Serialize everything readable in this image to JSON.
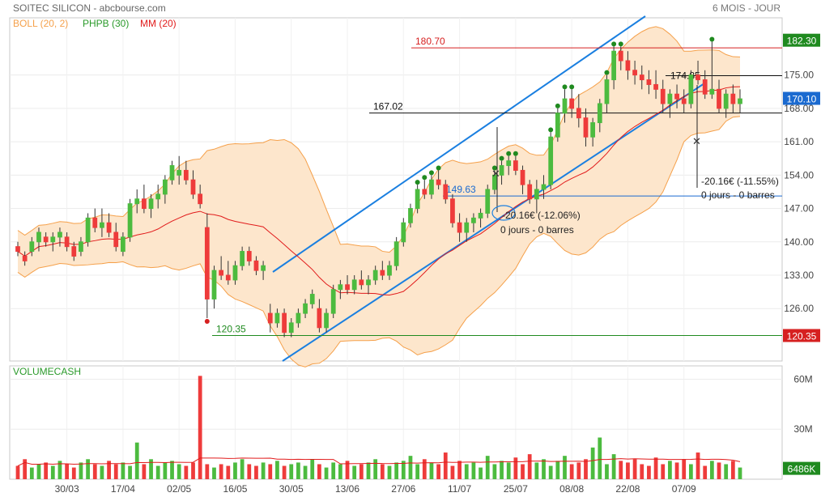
{
  "header": {
    "title": "SOITEC SILICON - abcbourse.com",
    "period": "6 MOIS - JOUR",
    "legend": [
      {
        "label": "BOLL (20, 2)",
        "color": "#f5a04a"
      },
      {
        "label": "PHPB (30)",
        "color": "#2a9a2a"
      },
      {
        "label": "MM (20)",
        "color": "#e11b1b"
      }
    ]
  },
  "volume_panel": {
    "title": "VOLUMECASH"
  },
  "colors": {
    "up": "#4cbb3f",
    "down": "#ee3b3b",
    "boll": "#f5a04a",
    "boll_fill": "#fde6cc",
    "mm": "#e11b1b",
    "channel": "#1a7fe0",
    "volume_ma": "#e11b1b"
  },
  "annotations": {
    "level_high": "180.70",
    "level_mid": "167.02",
    "level_low": "120.35",
    "level_blue": "149.63",
    "level_174": "174.85",
    "tag_high": "182.30",
    "tag_last": "170.10",
    "tag_low": "120.35",
    "tag_vol": "6486K",
    "measure1_line1": "-20.16€ (-11.55%)",
    "measure1_line2": "0 jours - 0 barres",
    "measure2_line1": "-20.16€ (-12.06%)",
    "measure2_line2": "0 jours - 0 barres"
  },
  "chart_data": {
    "type": "candlestick",
    "title": "SOITEC SILICON",
    "x_tick_labels": [
      "30/03",
      "17/04",
      "02/05",
      "16/05",
      "30/05",
      "13/06",
      "27/06",
      "11/07",
      "25/07",
      "08/08",
      "22/08",
      "07/09"
    ],
    "y_ticks": [
      "182.30",
      "175.00",
      "170.10",
      "168.00",
      "161.00",
      "154.00",
      "147.00",
      "140.00",
      "133.00",
      "126.00",
      "120.35"
    ],
    "ylim": [
      115,
      187
    ],
    "volume_ticks": [
      "60M",
      "30M",
      "6486K"
    ],
    "volume_ylim": [
      0,
      68
    ],
    "volume_unit": "M",
    "candles": [
      [
        139,
        140,
        137,
        138
      ],
      [
        137,
        138,
        135,
        136
      ],
      [
        138,
        141,
        137,
        140
      ],
      [
        140,
        143,
        138,
        142
      ],
      [
        141,
        142,
        139,
        140
      ],
      [
        140,
        142,
        138,
        141
      ],
      [
        141,
        143,
        139,
        142
      ],
      [
        141,
        142,
        138,
        139
      ],
      [
        139,
        140,
        136,
        137
      ],
      [
        138,
        141,
        137,
        140
      ],
      [
        140,
        146,
        139,
        145
      ],
      [
        145,
        147,
        142,
        143
      ],
      [
        143,
        147,
        141,
        144
      ],
      [
        144,
        146,
        141,
        142
      ],
      [
        142,
        144,
        138,
        139
      ],
      [
        138,
        142,
        137,
        141
      ],
      [
        141,
        149,
        140,
        148
      ],
      [
        148,
        151,
        146,
        149
      ],
      [
        149,
        152,
        146,
        147
      ],
      [
        147,
        150,
        145,
        149
      ],
      [
        149,
        152,
        147,
        150
      ],
      [
        150,
        154,
        148,
        153
      ],
      [
        153,
        157,
        152,
        156
      ],
      [
        154,
        158,
        152,
        155
      ],
      [
        155,
        157,
        152,
        153
      ],
      [
        153,
        155,
        149,
        150
      ],
      [
        150,
        152,
        147,
        148
      ],
      [
        143,
        146,
        124,
        128
      ],
      [
        128,
        135,
        126,
        134
      ],
      [
        134,
        137,
        132,
        133
      ],
      [
        133,
        136,
        131,
        132
      ],
      [
        132,
        136,
        131,
        135
      ],
      [
        135,
        139,
        134,
        138
      ],
      [
        138,
        139,
        135,
        136
      ],
      [
        136,
        137,
        133,
        134
      ],
      [
        134,
        136,
        132,
        135
      ],
      [
        125,
        127,
        121,
        123
      ],
      [
        123,
        126,
        122,
        125
      ],
      [
        125,
        126,
        120,
        121
      ],
      [
        121,
        124,
        120,
        123
      ],
      [
        123,
        126,
        122,
        125
      ],
      [
        125,
        128,
        124,
        127
      ],
      [
        127,
        130,
        126,
        129
      ],
      [
        126,
        128,
        121,
        122
      ],
      [
        122,
        126,
        121,
        125
      ],
      [
        125,
        131,
        124,
        130
      ],
      [
        130,
        132,
        128,
        131
      ],
      [
        131,
        133,
        129,
        130
      ],
      [
        130,
        133,
        129,
        132
      ],
      [
        132,
        134,
        130,
        131
      ],
      [
        131,
        133,
        129,
        132
      ],
      [
        132,
        135,
        131,
        134
      ],
      [
        134,
        136,
        132,
        133
      ],
      [
        133,
        136,
        132,
        135
      ],
      [
        135,
        141,
        134,
        140
      ],
      [
        140,
        145,
        139,
        144
      ],
      [
        144,
        148,
        143,
        147
      ],
      [
        147,
        152,
        146,
        151
      ],
      [
        151,
        153,
        149,
        150
      ],
      [
        150,
        154,
        149,
        153
      ],
      [
        153,
        155,
        151,
        152
      ],
      [
        152,
        153,
        148,
        149
      ],
      [
        149,
        150,
        143,
        144
      ],
      [
        144,
        146,
        140,
        142
      ],
      [
        142,
        145,
        140,
        144
      ],
      [
        144,
        146,
        142,
        145
      ],
      [
        145,
        147,
        143,
        146
      ],
      [
        146,
        152,
        145,
        151
      ],
      [
        151,
        155,
        150,
        154
      ],
      [
        154,
        157,
        152,
        156
      ],
      [
        156,
        158,
        154,
        157
      ],
      [
        157,
        158,
        154,
        155
      ],
      [
        155,
        156,
        150,
        152
      ],
      [
        152,
        153,
        148,
        149
      ],
      [
        149,
        153,
        146,
        151
      ],
      [
        151,
        154,
        149,
        152
      ],
      [
        152,
        163,
        151,
        162
      ],
      [
        162,
        168,
        161,
        167
      ],
      [
        167,
        172,
        165,
        170
      ],
      [
        170,
        172,
        166,
        168
      ],
      [
        168,
        171,
        164,
        166
      ],
      [
        166,
        168,
        160,
        162
      ],
      [
        162,
        166,
        160,
        165
      ],
      [
        165,
        170,
        163,
        169
      ],
      [
        169,
        175,
        167,
        174
      ],
      [
        174,
        181,
        172,
        180
      ],
      [
        180,
        181,
        176,
        178
      ],
      [
        178,
        180,
        174,
        176
      ],
      [
        176,
        178,
        173,
        175
      ],
      [
        175,
        177,
        172,
        174
      ],
      [
        174,
        176,
        171,
        173
      ],
      [
        173,
        176,
        170,
        172
      ],
      [
        172,
        174,
        167,
        169
      ],
      [
        169,
        172,
        166,
        171
      ],
      [
        171,
        173,
        168,
        170
      ],
      [
        170,
        172,
        167,
        169
      ],
      [
        169,
        176,
        168,
        175
      ],
      [
        175,
        178,
        173,
        174
      ],
      [
        174,
        176,
        170,
        171
      ],
      [
        171,
        182,
        170,
        172
      ],
      [
        172,
        174,
        167,
        168
      ],
      [
        168,
        172,
        166,
        171
      ],
      [
        171,
        173,
        167,
        169
      ],
      [
        169,
        172,
        167,
        170
      ]
    ],
    "volumes": [
      8,
      12,
      7,
      9,
      10,
      8,
      11,
      9,
      7,
      10,
      12,
      9,
      8,
      11,
      9,
      10,
      8,
      22,
      9,
      12,
      8,
      10,
      11,
      9,
      8,
      10,
      62,
      9,
      7,
      9,
      8,
      10,
      12,
      9,
      8,
      10,
      9,
      11,
      8,
      9,
      10,
      8,
      12,
      9,
      7,
      10,
      9,
      11,
      8,
      9,
      10,
      12,
      9,
      8,
      10,
      11,
      14,
      9,
      12,
      10,
      9,
      16,
      8,
      11,
      9,
      10,
      7,
      14,
      9,
      11,
      10,
      13,
      9,
      15,
      10,
      12,
      8,
      11,
      14,
      9,
      10,
      12,
      19,
      25,
      9,
      15,
      11,
      10,
      12,
      9,
      8,
      13,
      9,
      11,
      10,
      12,
      9,
      16,
      8,
      11,
      10,
      9,
      11,
      7
    ]
  }
}
